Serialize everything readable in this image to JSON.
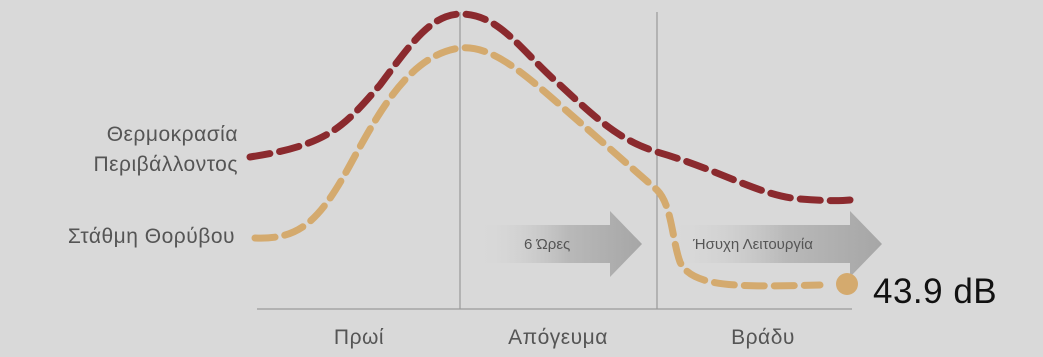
{
  "chart_data": {
    "type": "line",
    "categories": [
      "Πρωί",
      "Απόγευμα",
      "Βράδυ"
    ],
    "series": [
      {
        "name": "Θερμοκρασία Περιβάλλοντος",
        "color": "#8b2a2e",
        "style": "dashed"
      },
      {
        "name": "Στάθμη Θορύβου",
        "color": "#d4aa6e",
        "style": "dashed"
      }
    ],
    "annotations": {
      "arrow_1": "6 Ώρες",
      "arrow_2": "Ήσυχη Λειτουργία",
      "end_value": "43.9 dB"
    },
    "grid": false,
    "legend": "inline-left"
  },
  "labels": {
    "series_1_line1": "Θερμοκρασία",
    "series_1_line2": "Περιβάλλοντος",
    "series_2": "Στάθμη Θορύβου"
  }
}
